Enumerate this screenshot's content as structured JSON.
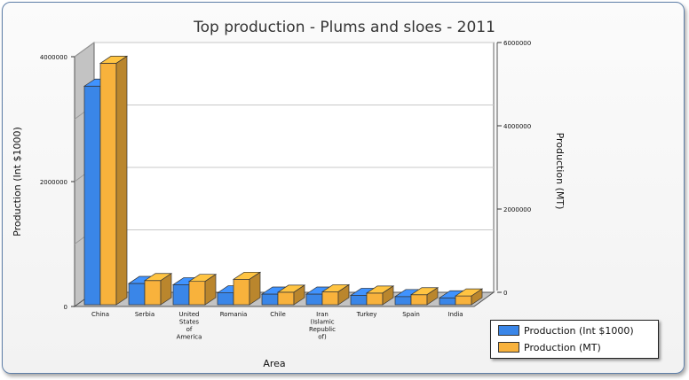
{
  "chart_data": {
    "type": "bar",
    "title": "Top production - Plums and sloes - 2011",
    "xlabel": "Area",
    "ylabel": "Production (Int $1000)",
    "y2label": "Production (MT)",
    "categories": [
      "China",
      "Serbia",
      "United States of America",
      "Romania",
      "Chile",
      "Iran (Islamic Republic of)",
      "Turkey",
      "Spain",
      "India"
    ],
    "series": [
      {
        "name": "Production (Int $1000)",
        "axis": "left",
        "color": "#3a86e8",
        "values": [
          3500000,
          340000,
          320000,
          190000,
          170000,
          170000,
          150000,
          130000,
          110000
        ]
      },
      {
        "name": "Production (MT)",
        "axis": "right",
        "color": "#f8b23c",
        "values": [
          5800000,
          580000,
          560000,
          610000,
          300000,
          310000,
          280000,
          240000,
          210000
        ]
      }
    ],
    "yticks": [
      "0",
      "2000000",
      "4000000"
    ],
    "ylim": [
      0,
      4000000
    ],
    "y2ticks": [
      "0",
      "2000000",
      "4000000",
      "6000000"
    ],
    "y2lim": [
      0,
      6000000
    ],
    "grid": true,
    "legend_position": "bottom-right"
  }
}
